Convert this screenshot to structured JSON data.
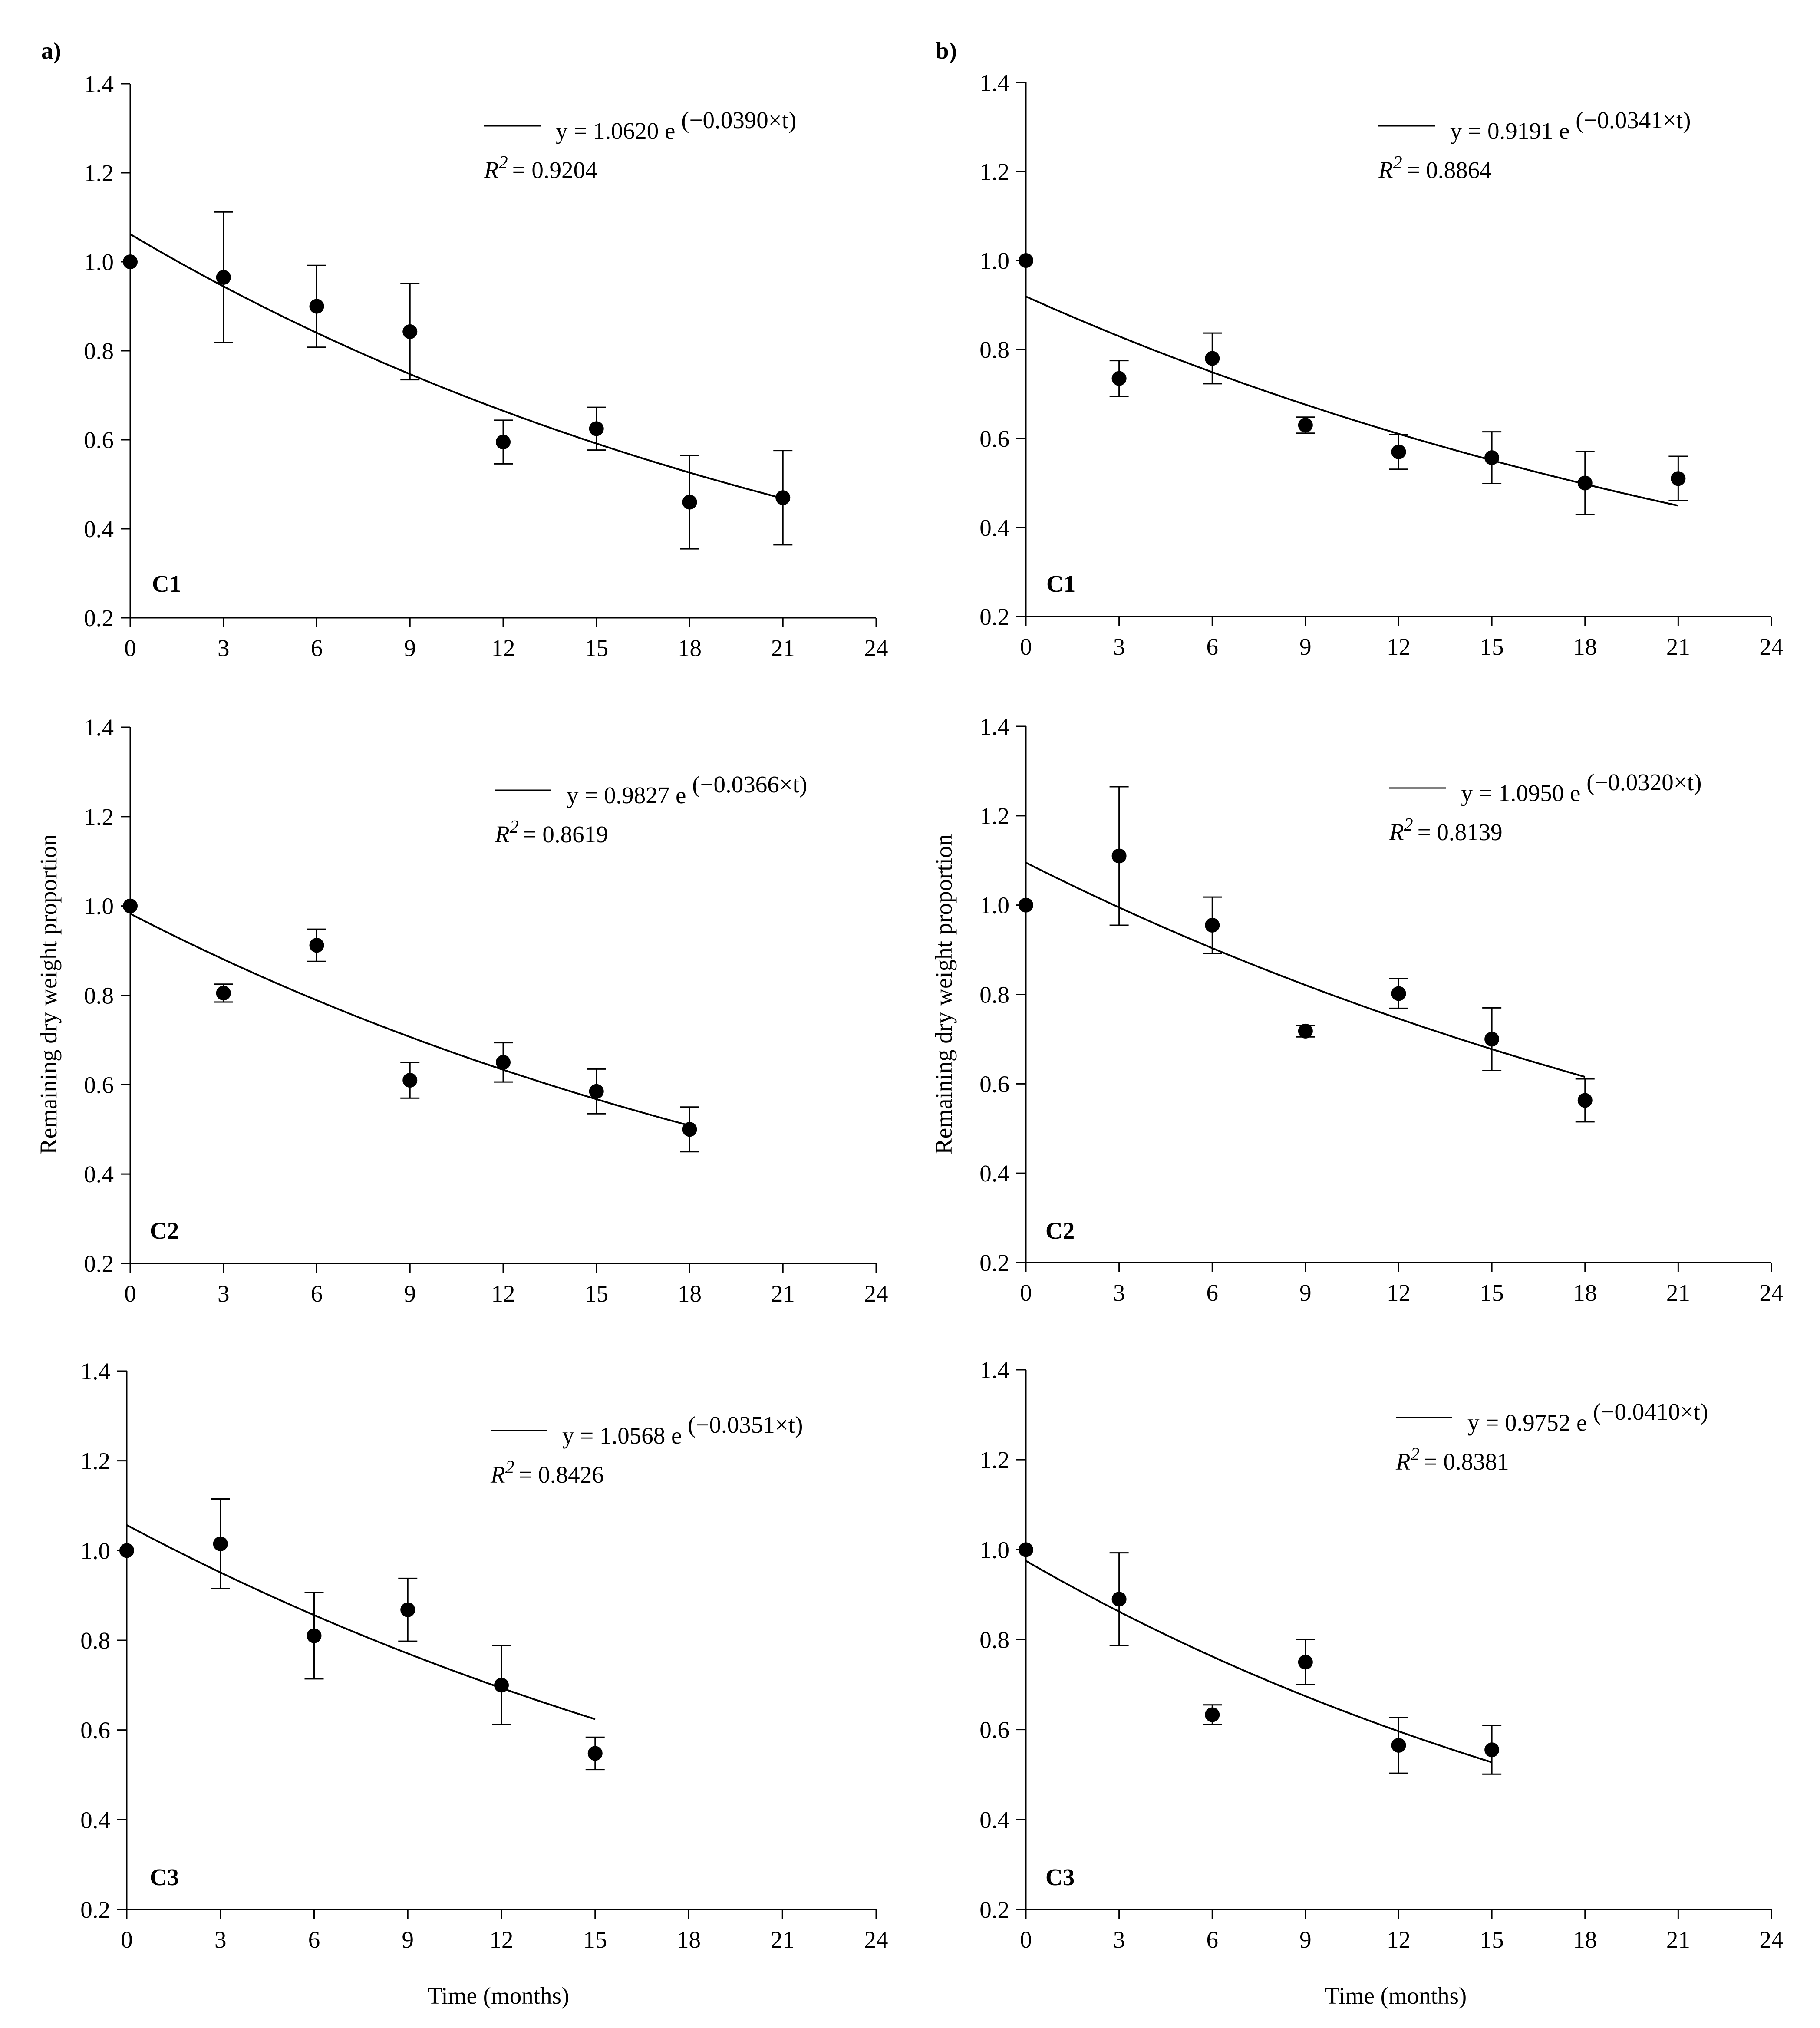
{
  "figure": {
    "panel_letters": [
      "a)",
      "b)"
    ],
    "x_axis_label": "Time (months)",
    "y_axis_label": "Remaining dry weight proportion",
    "colors": {
      "ink": "#000000",
      "background": "#ffffff"
    }
  },
  "chart_data": [
    {
      "type": "scatter",
      "column": "a)",
      "tag": "C1",
      "x": [
        0,
        3,
        6,
        9,
        12,
        15,
        18,
        21
      ],
      "y": [
        1.0,
        0.965,
        0.9,
        0.843,
        0.595,
        0.625,
        0.46,
        0.47
      ],
      "y_err": [
        0,
        0.147,
        0.092,
        0.108,
        0.049,
        0.048,
        0.105,
        0.106
      ],
      "fit": {
        "a": 1.062,
        "b": -0.039,
        "t_max": 21
      },
      "equation_prefix": "y = 1.0620 e",
      "equation_exponent": "(−0.0390×t)",
      "r2_value": "= 0.9204",
      "xlim": [
        0,
        24
      ],
      "ylim": [
        0.2,
        1.4
      ],
      "x_ticks": [
        "0",
        "3",
        "6",
        "9",
        "12",
        "15",
        "18",
        "21",
        "24"
      ],
      "y_ticks": [
        "0.2",
        "0.4",
        "0.6",
        "0.8",
        "1.0",
        "1.2",
        "1.4"
      ]
    },
    {
      "type": "scatter",
      "column": "b)",
      "tag": "C1",
      "x": [
        0,
        3,
        6,
        9,
        12,
        15,
        18,
        21
      ],
      "y": [
        1.0,
        0.735,
        0.78,
        0.63,
        0.57,
        0.557,
        0.5,
        0.51
      ],
      "y_err": [
        0,
        0.04,
        0.057,
        0.018,
        0.039,
        0.058,
        0.071,
        0.05
      ],
      "fit": {
        "a": 0.9191,
        "b": -0.0341,
        "t_max": 21
      },
      "equation_prefix": "y = 0.9191 e",
      "equation_exponent": "(−0.0341×t)",
      "r2_value": "= 0.8864",
      "xlim": [
        0,
        24
      ],
      "ylim": [
        0.2,
        1.4
      ],
      "x_ticks": [
        "0",
        "3",
        "6",
        "9",
        "12",
        "15",
        "18",
        "21",
        "24"
      ],
      "y_ticks": [
        "0.2",
        "0.4",
        "0.6",
        "0.8",
        "1.0",
        "1.2",
        "1.4"
      ]
    },
    {
      "type": "scatter",
      "column": "a)",
      "tag": "C2",
      "x": [
        0,
        3,
        6,
        9,
        12,
        15,
        18
      ],
      "y": [
        1.0,
        0.805,
        0.912,
        0.61,
        0.65,
        0.585,
        0.5
      ],
      "y_err": [
        0,
        0.02,
        0.036,
        0.04,
        0.044,
        0.05,
        0.05
      ],
      "fit": {
        "a": 0.9827,
        "b": -0.0366,
        "t_max": 18
      },
      "equation_prefix": "y = 0.9827 e",
      "equation_exponent": "(−0.0366×t)",
      "r2_value": "= 0.8619",
      "xlim": [
        0,
        24
      ],
      "ylim": [
        0.2,
        1.4
      ],
      "x_ticks": [
        "0",
        "3",
        "6",
        "9",
        "12",
        "15",
        "18",
        "21",
        "24"
      ],
      "y_ticks": [
        "0.2",
        "0.4",
        "0.6",
        "0.8",
        "1.0",
        "1.2",
        "1.4"
      ]
    },
    {
      "type": "scatter",
      "column": "b)",
      "tag": "C2",
      "x": [
        0,
        3,
        6,
        9,
        12,
        15,
        18
      ],
      "y": [
        1.0,
        1.11,
        0.955,
        0.718,
        0.802,
        0.7,
        0.563
      ],
      "y_err": [
        0,
        0.155,
        0.063,
        0.013,
        0.033,
        0.07,
        0.048
      ],
      "fit": {
        "a": 1.095,
        "b": -0.032,
        "t_max": 18
      },
      "equation_prefix": "y = 1.0950 e",
      "equation_exponent": "(−0.0320×t)",
      "r2_value": "= 0.8139",
      "xlim": [
        0,
        24
      ],
      "ylim": [
        0.2,
        1.4
      ],
      "x_ticks": [
        "0",
        "3",
        "6",
        "9",
        "12",
        "15",
        "18",
        "21",
        "24"
      ],
      "y_ticks": [
        "0.2",
        "0.4",
        "0.6",
        "0.8",
        "1.0",
        "1.2",
        "1.4"
      ]
    },
    {
      "type": "scatter",
      "column": "a)",
      "tag": "C3",
      "x": [
        0,
        3,
        6,
        9,
        12,
        15
      ],
      "y": [
        1.0,
        1.015,
        0.81,
        0.868,
        0.7,
        0.548
      ],
      "y_err": [
        0,
        0.1,
        0.096,
        0.07,
        0.088,
        0.036
      ],
      "fit": {
        "a": 1.0568,
        "b": -0.0351,
        "t_max": 15
      },
      "equation_prefix": "y = 1.0568 e",
      "equation_exponent": "(−0.0351×t)",
      "r2_value": "= 0.8426",
      "xlim": [
        0,
        24
      ],
      "ylim": [
        0.2,
        1.4
      ],
      "x_ticks": [
        "0",
        "3",
        "6",
        "9",
        "12",
        "15",
        "18",
        "21",
        "24"
      ],
      "y_ticks": [
        "0.2",
        "0.4",
        "0.6",
        "0.8",
        "1.0",
        "1.2",
        "1.4"
      ]
    },
    {
      "type": "scatter",
      "column": "b)",
      "tag": "C3",
      "x": [
        0,
        3,
        6,
        9,
        12,
        15
      ],
      "y": [
        1.0,
        0.89,
        0.633,
        0.75,
        0.565,
        0.555
      ],
      "y_err": [
        0,
        0.103,
        0.022,
        0.05,
        0.062,
        0.054
      ],
      "fit": {
        "a": 0.9752,
        "b": -0.041,
        "t_max": 15
      },
      "equation_prefix": "y = 0.9752 e",
      "equation_exponent": "(−0.0410×t)",
      "r2_value": "= 0.8381",
      "xlim": [
        0,
        24
      ],
      "ylim": [
        0.2,
        1.4
      ],
      "x_ticks": [
        "0",
        "3",
        "6",
        "9",
        "12",
        "15",
        "18",
        "21",
        "24"
      ],
      "y_ticks": [
        "0.2",
        "0.4",
        "0.6",
        "0.8",
        "1.0",
        "1.2",
        "1.4"
      ]
    }
  ]
}
